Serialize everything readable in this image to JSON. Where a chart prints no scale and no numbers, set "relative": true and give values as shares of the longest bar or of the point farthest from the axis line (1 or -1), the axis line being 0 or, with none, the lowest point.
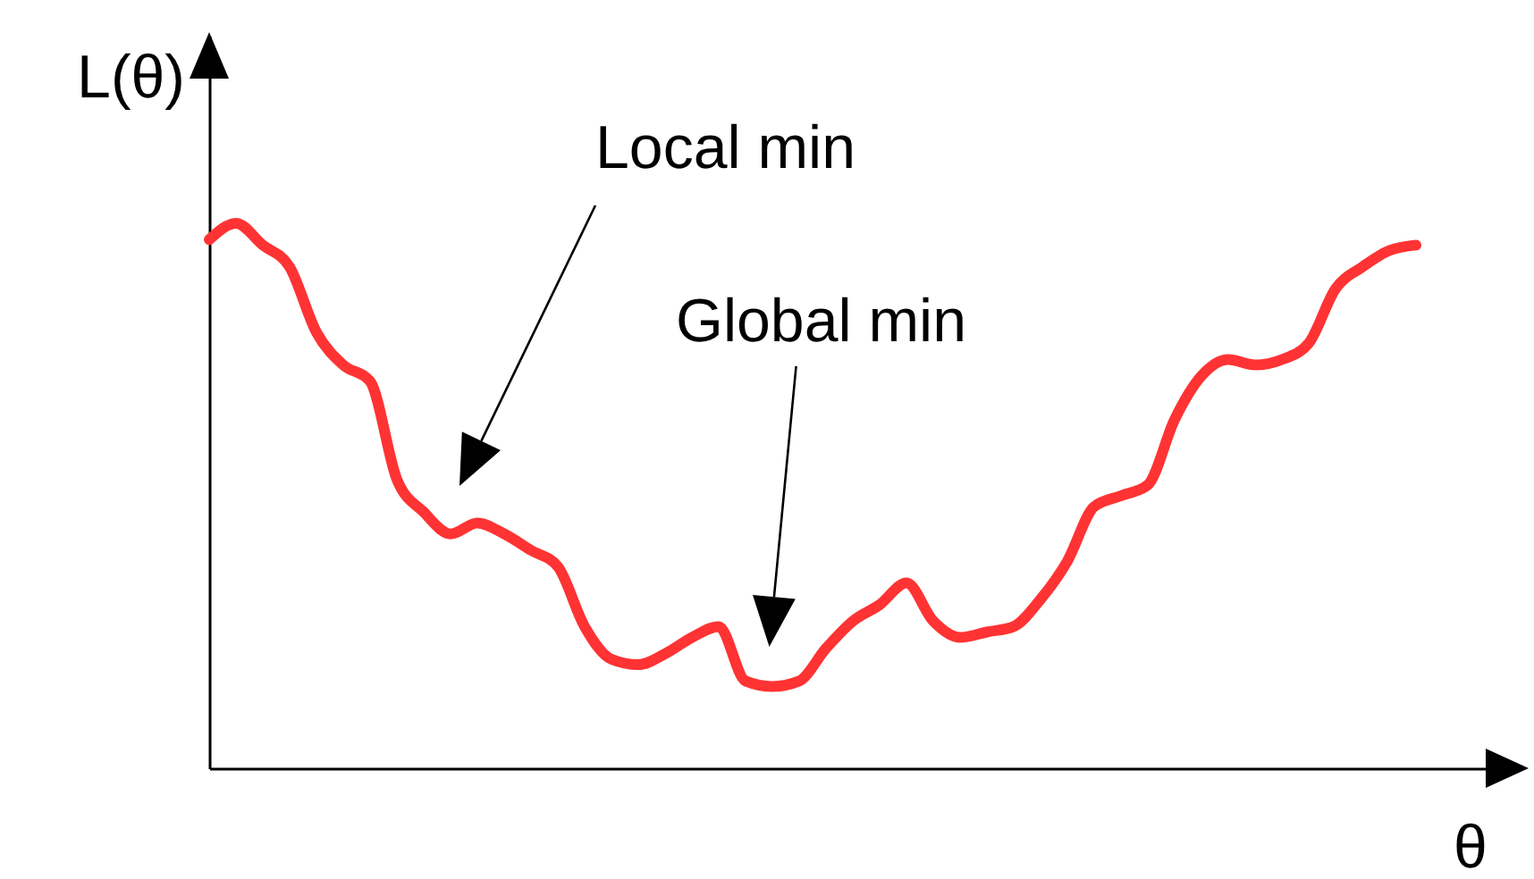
{
  "chart_data": {
    "type": "line",
    "relative": true,
    "xlabel": "θ",
    "ylabel": "L(θ)",
    "grid": false,
    "marker": "none",
    "line_style": "solid",
    "annotations": [
      "Local min",
      "Global min"
    ],
    "categories": [
      null,
      null,
      null,
      null,
      null,
      null,
      null,
      null,
      null,
      null,
      null,
      null,
      null,
      null,
      null,
      null,
      null,
      null,
      null,
      null,
      null,
      null,
      null,
      null,
      null,
      null,
      null,
      null,
      null,
      null,
      null,
      null,
      null,
      null,
      null,
      null,
      null,
      null,
      null,
      null,
      null,
      null,
      null,
      null,
      null,
      null
    ],
    "series": [
      {
        "color": "#ff3333",
        "values": [
          0.97,
          1.0,
          0.96,
          0.92,
          0.8,
          0.74,
          0.71,
          0.53,
          0.47,
          0.43,
          0.45,
          0.43,
          0.4,
          0.37,
          0.26,
          0.2,
          0.19,
          0.21,
          0.24,
          0.26,
          0.16,
          0.15,
          0.16,
          0.22,
          0.27,
          0.3,
          0.34,
          0.27,
          0.24,
          0.25,
          0.26,
          0.31,
          0.38,
          0.48,
          0.5,
          0.52,
          0.64,
          0.72,
          0.75,
          0.74,
          0.75,
          0.78,
          0.88,
          0.92,
          0.95,
          0.96
        ]
      }
    ]
  }
}
